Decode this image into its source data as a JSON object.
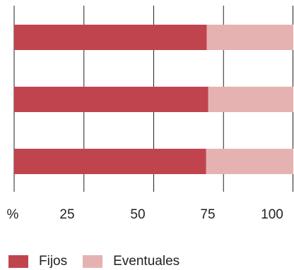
{
  "chart_data": {
    "type": "bar",
    "orientation": "horizontal",
    "stacked": true,
    "categories": [
      "",
      "",
      ""
    ],
    "series": [
      {
        "name": "Fijos",
        "values": [
          69,
          69.5,
          68.8
        ],
        "color": "#c0444e"
      },
      {
        "name": "Eventuales",
        "values": [
          31,
          30.5,
          31.2
        ],
        "color": "#e6b2b1"
      }
    ],
    "xlim": [
      0,
      100
    ],
    "x_ticks": [
      0,
      25,
      50,
      75,
      100
    ],
    "x_tick_labels": [
      "%",
      "25",
      "50",
      "75",
      "100"
    ],
    "grid": "vertical",
    "legend_position": "bottom-left"
  }
}
